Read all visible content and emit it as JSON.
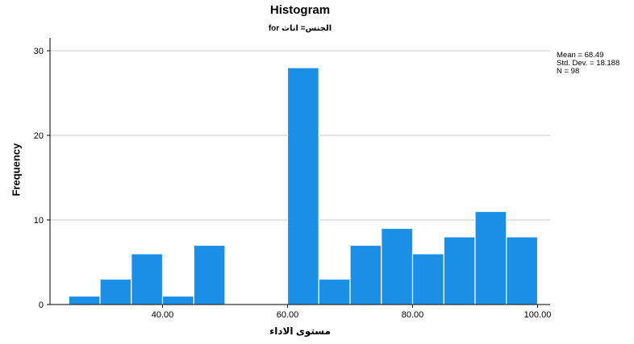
{
  "chart_data": {
    "type": "bar",
    "title": "Histogram",
    "subtitle": "for الجنس= اناث",
    "xlabel": "مستوى الاداء",
    "ylabel": "Frequency",
    "bin_width": 5,
    "bins": [
      {
        "from": 25,
        "to": 30,
        "count": 1
      },
      {
        "from": 30,
        "to": 35,
        "count": 3
      },
      {
        "from": 35,
        "to": 40,
        "count": 6
      },
      {
        "from": 40,
        "to": 45,
        "count": 1
      },
      {
        "from": 45,
        "to": 50,
        "count": 7
      },
      {
        "from": 60,
        "to": 65,
        "count": 28
      },
      {
        "from": 65,
        "to": 70,
        "count": 3
      },
      {
        "from": 70,
        "to": 75,
        "count": 7
      },
      {
        "from": 75,
        "to": 80,
        "count": 9
      },
      {
        "from": 80,
        "to": 85,
        "count": 6
      },
      {
        "from": 85,
        "to": 90,
        "count": 8
      },
      {
        "from": 90,
        "to": 95,
        "count": 11
      },
      {
        "from": 95,
        "to": 100,
        "count": 8
      }
    ],
    "xlim": [
      22,
      102
    ],
    "ylim": [
      0,
      30
    ],
    "x_ticks": [
      "40.00",
      "60.00",
      "80.00",
      "100.00"
    ],
    "x_tick_values": [
      40,
      60,
      80,
      100
    ],
    "y_ticks": [
      "0",
      "10",
      "20",
      "30"
    ],
    "y_tick_values": [
      0,
      10,
      20,
      30
    ],
    "grid": "horizontal",
    "bar_color": "#1a8fe5",
    "stats": {
      "mean": "Mean = 68.49",
      "sd": "Std. Dev. = 18.188",
      "n": "N = 98"
    }
  }
}
